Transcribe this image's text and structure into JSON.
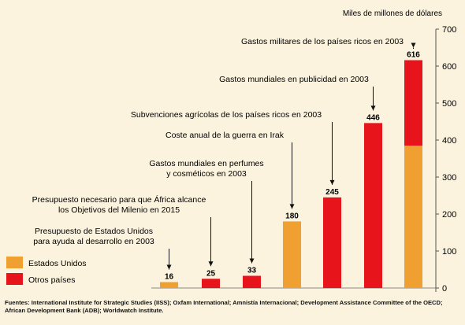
{
  "chart_data": {
    "type": "bar",
    "stacked": true,
    "unit_label": "Miles de millones de dólares",
    "ylim": [
      0,
      700
    ],
    "yticks": [
      0,
      100,
      200,
      300,
      400,
      500,
      600,
      700
    ],
    "grid": false,
    "legend_position": "bottom-left",
    "series": [
      {
        "name": "Estados Unidos",
        "color": "#f0a030",
        "values": [
          16,
          0,
          0,
          180,
          0,
          0,
          385
        ]
      },
      {
        "name": "Otros países",
        "color": "#e8141b",
        "values": [
          0,
          25,
          33,
          0,
          245,
          446,
          231
        ]
      }
    ],
    "totals": [
      16,
      25,
      33,
      180,
      245,
      446,
      616
    ],
    "value_labels": [
      "16",
      "25",
      "33",
      "180",
      "245",
      "446",
      "616"
    ],
    "annotations": [
      {
        "lines": [
          "Presupuesto de Estados Unidos",
          "para ayuda al desarrollo en 2003"
        ]
      },
      {
        "lines": [
          "Presupuesto necesario para que África alcance",
          "los Objetivos del Milenio en 2015"
        ]
      },
      {
        "lines": [
          "Gastos mundiales en perfumes",
          "y cosméticos en 2003"
        ]
      },
      {
        "lines": [
          "Coste anual de la guerra en Irak"
        ]
      },
      {
        "lines": [
          "Subvenciones agrícolas de los países ricos en 2003"
        ]
      },
      {
        "lines": [
          "Gastos mundiales en publicidad en 2003"
        ]
      },
      {
        "lines": [
          "Gastos militares de los países ricos en 2003"
        ]
      }
    ]
  },
  "source_text": "Fuentes: International Institute for Strategic Studies (IISS); Oxfam International; Amnistía Internacional; Development Assistance Committee of the OECD; African Development Bank (ADB); Worldwatch Institute."
}
